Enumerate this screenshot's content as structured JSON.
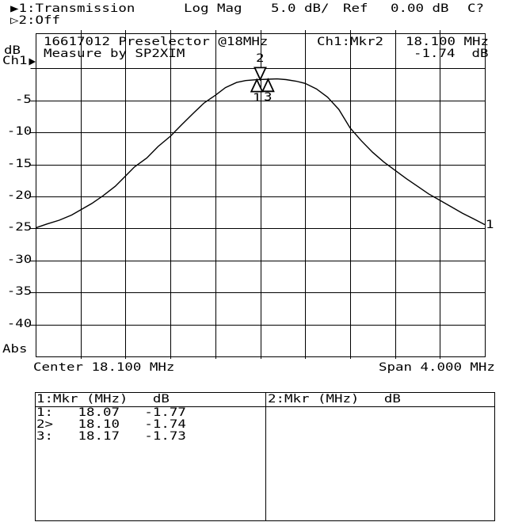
{
  "header": {
    "ch1_measurement": "▶1:Transmission",
    "format": "Log Mag",
    "scale": "5.0 dB/",
    "ref_label": "Ref",
    "ref_value": "0.00 dB",
    "cal_status": "C?",
    "ch2_measurement": "▷2:Off"
  },
  "y_axis": {
    "unit": "dB",
    "channel": "Ch1",
    "tick_labels": [
      "-5",
      "-10",
      "-15",
      "-20",
      "-25",
      "-30",
      "-35",
      "-40"
    ],
    "mode": "Abs"
  },
  "graticule": {
    "title_line1": "16617012 Preselector @18MHz",
    "title_line2": "Measure by SP2XIM",
    "marker_readout_label": "Ch1:Mkr2",
    "marker_readout_freq": "18.100 MHz",
    "marker_readout_value": "-1.74  dB",
    "trace_number": "1"
  },
  "x_axis": {
    "center_label": "Center 18.100 MHz",
    "span_label": "Span 4.000 MHz"
  },
  "marker_table": {
    "ch1_header": "1:Mkr (MHz)   dB",
    "ch2_header": "2:Mkr (MHz)   dB",
    "ch1_rows": [
      "1:   18.07   -1.77",
      "2>   18.10   -1.74",
      "3:   18.17   -1.73"
    ],
    "ch2_rows": []
  },
  "chart_data": {
    "type": "line",
    "title": "16617012 Preselector @18MHz",
    "xlabel": "",
    "ylabel": "dB",
    "center_mhz": 18.1,
    "span_mhz": 4.0,
    "xlim": [
      16.1,
      20.1
    ],
    "ylim": [
      -45,
      0
    ],
    "ref_db": 0.0,
    "db_per_div": 5.0,
    "x_divisions": 10,
    "y_divisions": 9,
    "grid": true,
    "ytick_values": [
      -5,
      -10,
      -15,
      -20,
      -25,
      -30,
      -35,
      -40
    ],
    "series": [
      {
        "name": "Ch1 Transmission Log Mag",
        "points": [
          [
            16.1,
            -24.9
          ],
          [
            16.2,
            -24.3
          ],
          [
            16.31,
            -23.7
          ],
          [
            16.42,
            -22.9
          ],
          [
            16.5,
            -22.1
          ],
          [
            16.6,
            -21.1
          ],
          [
            16.7,
            -19.9
          ],
          [
            16.81,
            -18.4
          ],
          [
            16.9,
            -16.8
          ],
          [
            16.98,
            -15.4
          ],
          [
            17.09,
            -14.0
          ],
          [
            17.19,
            -12.2
          ],
          [
            17.3,
            -10.6
          ],
          [
            17.4,
            -8.8
          ],
          [
            17.51,
            -6.9
          ],
          [
            17.6,
            -5.4
          ],
          [
            17.7,
            -4.2
          ],
          [
            17.79,
            -3.0
          ],
          [
            17.89,
            -2.2
          ],
          [
            17.97,
            -1.9
          ],
          [
            18.07,
            -1.77
          ],
          [
            18.1,
            -1.74
          ],
          [
            18.17,
            -1.7
          ],
          [
            18.25,
            -1.65
          ],
          [
            18.33,
            -1.75
          ],
          [
            18.42,
            -2.0
          ],
          [
            18.5,
            -2.35
          ],
          [
            18.6,
            -3.2
          ],
          [
            18.7,
            -4.5
          ],
          [
            18.8,
            -6.4
          ],
          [
            18.9,
            -9.3
          ],
          [
            19.0,
            -11.3
          ],
          [
            19.1,
            -13.1
          ],
          [
            19.2,
            -14.6
          ],
          [
            19.3,
            -15.9
          ],
          [
            19.4,
            -17.2
          ],
          [
            19.5,
            -18.4
          ],
          [
            19.6,
            -19.6
          ],
          [
            19.7,
            -20.6
          ],
          [
            19.8,
            -21.6
          ],
          [
            19.9,
            -22.6
          ],
          [
            20.0,
            -23.5
          ],
          [
            20.1,
            -24.4
          ]
        ]
      }
    ],
    "markers": [
      {
        "n": "1",
        "mhz": 18.07,
        "db": -1.77,
        "active": false
      },
      {
        "n": "2",
        "mhz": 18.1,
        "db": -1.74,
        "active": true
      },
      {
        "n": "3",
        "mhz": 18.17,
        "db": -1.73,
        "active": false
      }
    ]
  }
}
